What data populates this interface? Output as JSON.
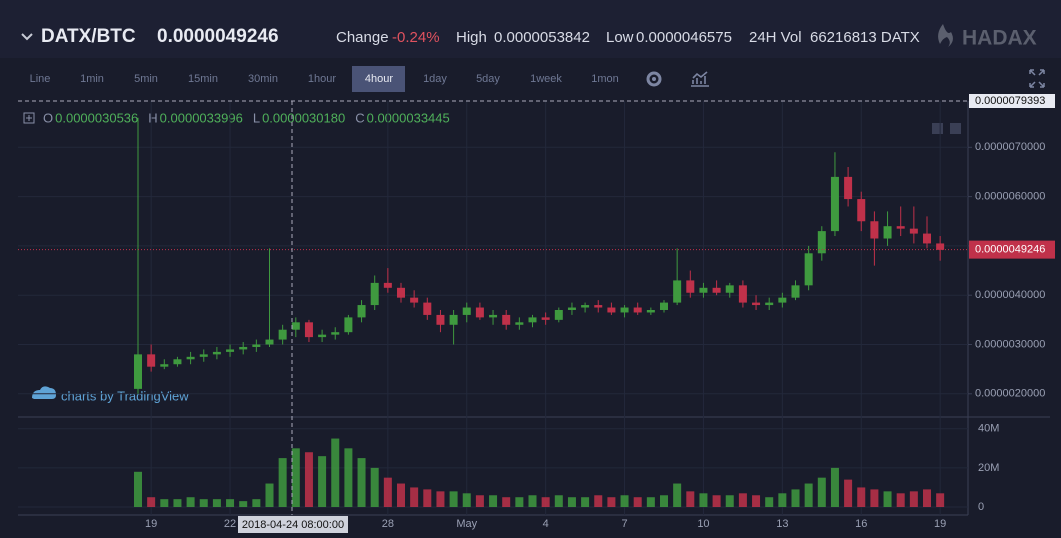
{
  "header": {
    "pair": "DATX/BTC",
    "price": "0.0000049246",
    "change_label": "Change",
    "change": "-0.24%",
    "high_label": "High",
    "high": "0.0000053842",
    "low_label": "Low",
    "low": "0.0000046575",
    "vol_label": "24H Vol",
    "vol": "66216813 DATX",
    "brand": "HADAX"
  },
  "toolbar": {
    "intervals": [
      "Line",
      "1min",
      "5min",
      "15min",
      "30min",
      "1hour",
      "4hour",
      "1day",
      "5day",
      "1week",
      "1mon"
    ],
    "active": "4hour"
  },
  "legend": {
    "o_label": "O",
    "o": "0.0000030536",
    "h_label": "H",
    "h": "0.0000033996",
    "l_label": "L",
    "l": "0.0000030180",
    "c_label": "C",
    "c": "0.0000033445"
  },
  "watermark": "charts by TradingView",
  "chart_data": {
    "type": "candlestick",
    "grid": true,
    "up_color": "#3f9a3f",
    "down_color": "#c0314a",
    "categories": [
      null,
      "19",
      null,
      null,
      null,
      null,
      null,
      "22",
      null,
      null,
      null,
      null,
      null,
      null,
      null,
      null,
      null,
      null,
      null,
      "28",
      null,
      null,
      null,
      null,
      null,
      "May",
      null,
      null,
      null,
      null,
      null,
      "4",
      null,
      null,
      null,
      null,
      null,
      "7",
      null,
      null,
      null,
      null,
      null,
      "10",
      null,
      null,
      null,
      null,
      null,
      "13",
      null,
      null,
      null,
      null,
      null,
      "16",
      null,
      null,
      null,
      null,
      null,
      "19"
    ],
    "open": [
      2.1e-06,
      2.8e-06,
      2.55e-06,
      2.6e-06,
      2.7e-06,
      2.75e-06,
      2.8e-06,
      2.85e-06,
      2.9e-06,
      2.95e-06,
      3e-06,
      3.1e-06,
      3.3e-06,
      3.45e-06,
      3.15e-06,
      3.2e-06,
      3.25e-06,
      3.55e-06,
      3.8e-06,
      4.25e-06,
      4.15e-06,
      3.95e-06,
      3.85e-06,
      3.6e-06,
      3.4e-06,
      3.6e-06,
      3.75e-06,
      3.55e-06,
      3.6e-06,
      3.4e-06,
      3.45e-06,
      3.55e-06,
      3.5e-06,
      3.7e-06,
      3.75e-06,
      3.8e-06,
      3.75e-06,
      3.65e-06,
      3.75e-06,
      3.65e-06,
      3.7e-06,
      3.85e-06,
      4.3e-06,
      4.05e-06,
      4.15e-06,
      4.05e-06,
      4.2e-06,
      3.85e-06,
      3.8e-06,
      3.85e-06,
      3.95e-06,
      4.2e-06,
      4.85e-06,
      5.3e-06,
      6.4e-06,
      5.95e-06,
      5.5e-06,
      5.15e-06,
      5.4e-06,
      5.35e-06,
      5.25e-06,
      5.05e-06
    ],
    "high": [
      7.6e-06,
      3e-06,
      2.7e-06,
      2.75e-06,
      2.85e-06,
      2.9e-06,
      2.95e-06,
      3e-06,
      3.05e-06,
      3.1e-06,
      4.95e-06,
      3.4e-06,
      3.55e-06,
      3.5e-06,
      3.3e-06,
      3.35e-06,
      3.6e-06,
      3.9e-06,
      4.4e-06,
      4.55e-06,
      4.25e-06,
      4.1e-06,
      3.95e-06,
      3.7e-06,
      3.7e-06,
      3.85e-06,
      3.85e-06,
      3.7e-06,
      3.7e-06,
      3.55e-06,
      3.6e-06,
      3.65e-06,
      3.75e-06,
      3.85e-06,
      3.85e-06,
      3.9e-06,
      3.85e-06,
      3.8e-06,
      3.85e-06,
      3.75e-06,
      3.9e-06,
      4.95e-06,
      4.5e-06,
      4.25e-06,
      4.3e-06,
      4.25e-06,
      4.3e-06,
      4e-06,
      3.95e-06,
      4.05e-06,
      4.3e-06,
      5e-06,
      5.4e-06,
      6.9e-06,
      6.6e-06,
      6.1e-06,
      5.7e-06,
      5.7e-06,
      5.8e-06,
      5.8e-06,
      5.6e-06,
      5.2e-06
    ],
    "low": [
      2e-06,
      2.45e-06,
      2.5e-06,
      2.55e-06,
      2.6e-06,
      2.65e-06,
      2.7e-06,
      2.75e-06,
      2.8e-06,
      2.85e-06,
      2.95e-06,
      3e-06,
      3.15e-06,
      3.05e-06,
      3.05e-06,
      3.1e-06,
      3.2e-06,
      3.45e-06,
      3.7e-06,
      4.05e-06,
      3.85e-06,
      3.75e-06,
      3.5e-06,
      3.25e-06,
      3e-06,
      3.45e-06,
      3.5e-06,
      3.4e-06,
      3.3e-06,
      3.3e-06,
      3.35e-06,
      3.4e-06,
      3.45e-06,
      3.6e-06,
      3.65e-06,
      3.65e-06,
      3.6e-06,
      3.55e-06,
      3.6e-06,
      3.6e-06,
      3.65e-06,
      3.8e-06,
      3.95e-06,
      3.95e-06,
      4e-06,
      3.95e-06,
      3.75e-06,
      3.7e-06,
      3.7e-06,
      3.75e-06,
      3.9e-06,
      4.1e-06,
      4.7e-06,
      5.2e-06,
      5.8e-06,
      5.3e-06,
      4.6e-06,
      5e-06,
      5.2e-06,
      5.05e-06,
      4.95e-06,
      4.7e-06
    ],
    "close": [
      2.8e-06,
      2.55e-06,
      2.6e-06,
      2.7e-06,
      2.75e-06,
      2.8e-06,
      2.85e-06,
      2.9e-06,
      2.95e-06,
      3e-06,
      3.1e-06,
      3.3e-06,
      3.45e-06,
      3.15e-06,
      3.2e-06,
      3.25e-06,
      3.55e-06,
      3.8e-06,
      4.25e-06,
      4.15e-06,
      3.95e-06,
      3.85e-06,
      3.6e-06,
      3.4e-06,
      3.6e-06,
      3.75e-06,
      3.55e-06,
      3.6e-06,
      3.4e-06,
      3.45e-06,
      3.55e-06,
      3.5e-06,
      3.7e-06,
      3.75e-06,
      3.8e-06,
      3.75e-06,
      3.65e-06,
      3.75e-06,
      3.65e-06,
      3.7e-06,
      3.85e-06,
      4.3e-06,
      4.05e-06,
      4.15e-06,
      4.05e-06,
      4.2e-06,
      3.85e-06,
      3.8e-06,
      3.85e-06,
      3.95e-06,
      4.2e-06,
      4.85e-06,
      5.3e-06,
      6.4e-06,
      5.95e-06,
      5.5e-06,
      5.15e-06,
      5.4e-06,
      5.35e-06,
      5.25e-06,
      5.05e-06,
      4.92e-06
    ],
    "ylim": [
      1.57e-06,
      7.9393e-06
    ],
    "yticks": [
      {
        "value": 2e-06,
        "label": "0.0000020000"
      },
      {
        "value": 3e-06,
        "label": "0.0000030000"
      },
      {
        "value": 4e-06,
        "label": "0.0000040000"
      },
      {
        "value": 5e-06,
        "label": "0.0000050000"
      },
      {
        "value": 6e-06,
        "label": "0.0000060000"
      },
      {
        "value": 7e-06,
        "label": "0.0000070000"
      }
    ],
    "last_price": {
      "value": 4.9246e-06,
      "label": "0.0000049246"
    },
    "crosshair_price": {
      "value": 7.9393e-06,
      "label": "0.0000079393"
    },
    "crosshair_time": "2018-04-24 08:00:00",
    "volume": {
      "values": [
        18000000.0,
        5000000.0,
        4000000.0,
        4000000.0,
        5000000.0,
        4000000.0,
        4000000.0,
        4000000.0,
        3000000.0,
        4000000.0,
        12000000.0,
        25000000.0,
        30000000.0,
        28000000.0,
        26000000.0,
        35000000.0,
        30000000.0,
        25000000.0,
        20000000.0,
        15000000.0,
        12000000.0,
        10000000.0,
        9000000.0,
        8000000.0,
        8000000.0,
        7000000.0,
        6000000.0,
        6000000.0,
        5000000.0,
        5000000.0,
        6000000.0,
        5000000.0,
        6000000.0,
        5000000.0,
        5000000.0,
        6000000.0,
        5000000.0,
        6000000.0,
        5000000.0,
        5000000.0,
        6000000.0,
        12000000.0,
        8000000.0,
        7000000.0,
        6000000.0,
        6000000.0,
        7000000.0,
        6000000.0,
        5000000.0,
        7000000.0,
        9000000.0,
        12000000.0,
        15000000.0,
        20000000.0,
        14000000.0,
        10000000.0,
        9000000.0,
        8000000.0,
        7000000.0,
        8000000.0,
        9000000.0,
        7000000.0
      ],
      "ylim": [
        0,
        45000000.0
      ],
      "yticks": [
        0,
        {
          "value": 20000000.0,
          "label": "20M"
        },
        {
          "value": 40000000.0,
          "label": "40M"
        }
      ]
    }
  }
}
